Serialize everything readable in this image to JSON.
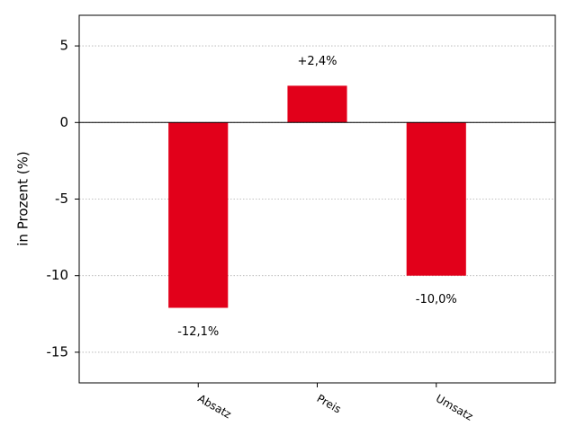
{
  "chart_data": {
    "type": "bar",
    "ylabel": "in Prozent (%)",
    "categories": [
      "Absatz",
      "Preis",
      "Umsatz"
    ],
    "values": [
      -12.1,
      2.4,
      -10.0
    ],
    "value_labels": [
      "-12,1%",
      "+2,4%",
      "-10,0%"
    ],
    "color": "#e2001a",
    "ylim": [
      -17,
      7
    ],
    "yticks": [
      -15,
      -10,
      -5,
      0,
      5
    ],
    "grid": true
  }
}
